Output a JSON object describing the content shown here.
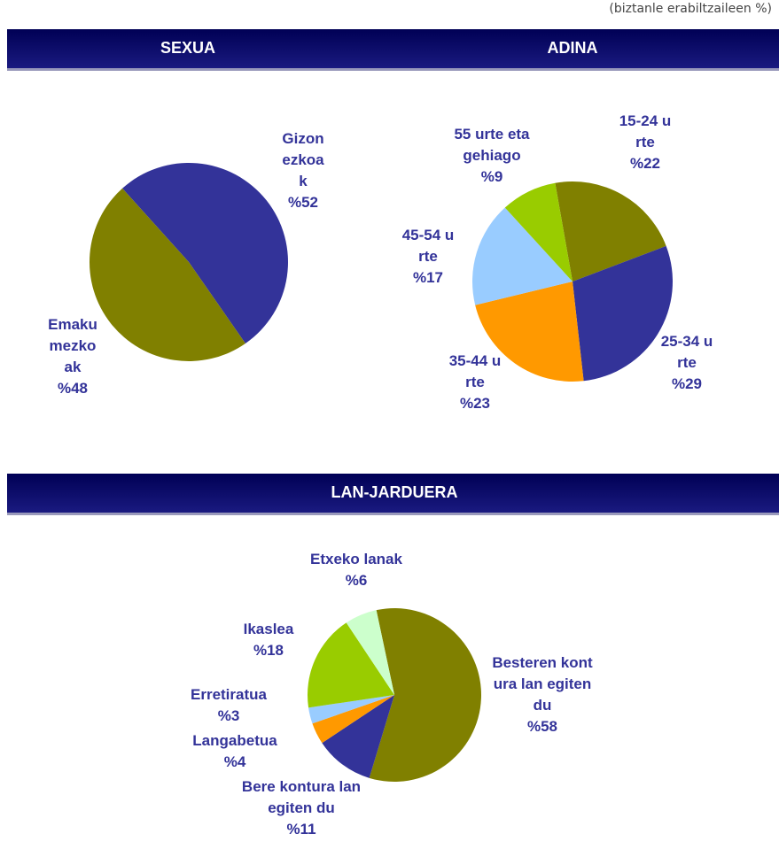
{
  "note": "(biztanle erabiltzaileen %)",
  "chart_data": [
    {
      "type": "pie",
      "title": "SEXUA",
      "categories": [
        "Gizonezkoak",
        "Emakumezkoak"
      ],
      "values": [
        52,
        48
      ],
      "value_labels": [
        "%52",
        "%48"
      ],
      "colors": [
        "#333399",
        "#808000"
      ]
    },
    {
      "type": "pie",
      "title": "ADINA",
      "categories": [
        "15-24 urte",
        "25-34 urte",
        "35-44 urte",
        "45-54 urte",
        "55 urte eta gehiago"
      ],
      "values": [
        22,
        29,
        23,
        17,
        9
      ],
      "value_labels": [
        "%22",
        "%29",
        "%23",
        "%17",
        "%9"
      ],
      "colors": [
        "#808000",
        "#333399",
        "#ff9900",
        "#99ccff",
        "#99cc00"
      ]
    },
    {
      "type": "pie",
      "title": "LAN-JARDUERA",
      "categories": [
        "Besteren kontura lan egiten du",
        "Bere kontura lan egiten du",
        "Langabetua",
        "Erretiratua",
        "Ikaslea",
        "Etxeko lanak"
      ],
      "values": [
        58,
        11,
        4,
        3,
        18,
        6
      ],
      "value_labels": [
        "%58",
        "%11",
        "%4",
        "%3",
        "%18",
        "%6"
      ],
      "colors": [
        "#808000",
        "#333399",
        "#ff9900",
        "#99ccff",
        "#99cc00",
        "#ccffcc"
      ]
    }
  ]
}
